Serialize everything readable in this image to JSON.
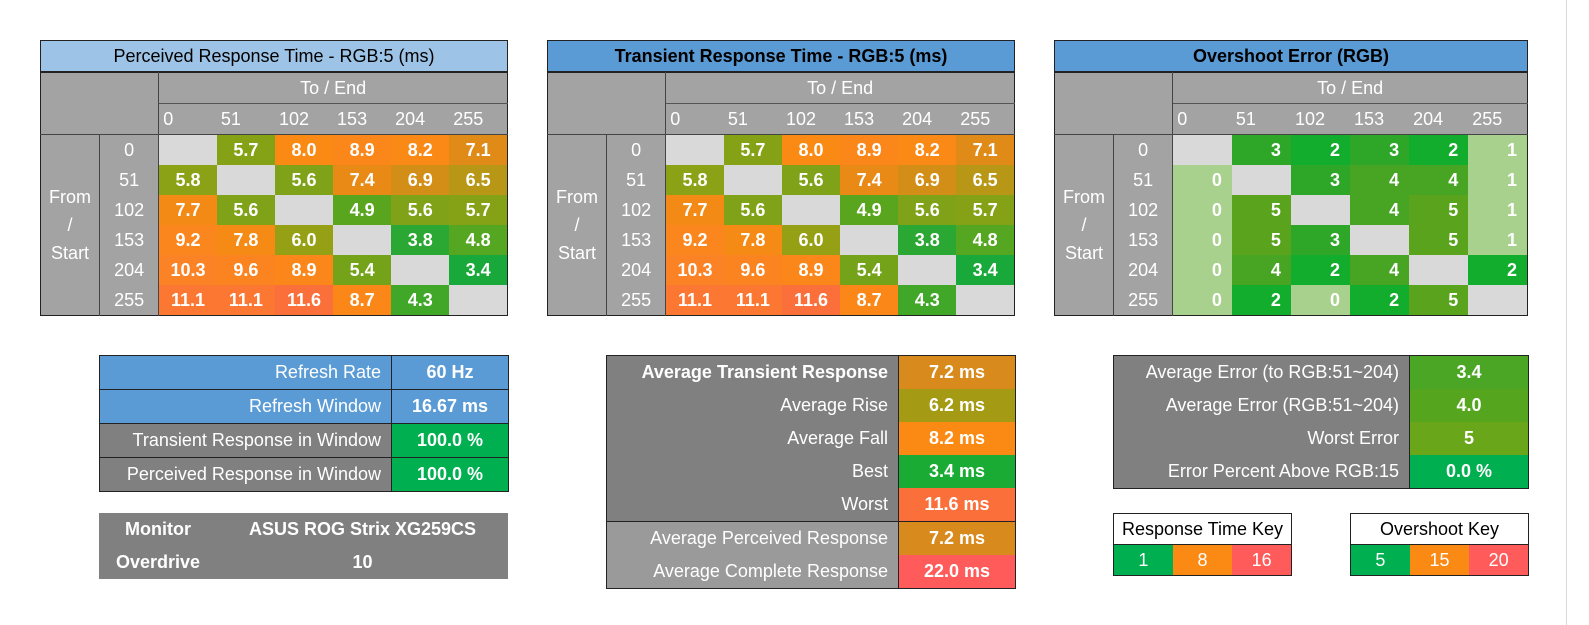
{
  "colors": {
    "blue_title_light": "#9dc3e6",
    "blue_title": "#5b9bd5",
    "header_gray": "#a3a3a3",
    "diag_gray": "#d9d9d9",
    "dark_gray": "#808080",
    "green": "#00b050",
    "red": "#ff5b5b"
  },
  "chart_data": [
    {
      "type": "heatmap",
      "title": "Perceived Response Time - RGB:5 (ms)",
      "x_label": "To / End",
      "y_label": "From / Start",
      "x_ticks": [
        "0",
        "51",
        "102",
        "153",
        "204",
        "255"
      ],
      "y_ticks": [
        "0",
        "51",
        "102",
        "153",
        "204",
        "255"
      ],
      "values": [
        [
          null,
          "5.7",
          "8.0",
          "8.9",
          "8.2",
          "7.1"
        ],
        [
          "5.8",
          null,
          "5.6",
          "7.4",
          "6.9",
          "6.5"
        ],
        [
          "7.7",
          "5.6",
          null,
          "4.9",
          "5.6",
          "5.7"
        ],
        [
          "9.2",
          "7.8",
          "6.0",
          null,
          "3.8",
          "4.8"
        ],
        [
          "10.3",
          "9.6",
          "8.9",
          "5.4",
          null,
          "3.4"
        ],
        [
          "11.1",
          "11.1",
          "11.6",
          "8.7",
          "4.3",
          null
        ]
      ]
    },
    {
      "type": "heatmap",
      "title": "Transient Response Time - RGB:5 (ms)",
      "x_label": "To / End",
      "y_label": "From / Start",
      "x_ticks": [
        "0",
        "51",
        "102",
        "153",
        "204",
        "255"
      ],
      "y_ticks": [
        "0",
        "51",
        "102",
        "153",
        "204",
        "255"
      ],
      "values": [
        [
          null,
          "5.7",
          "8.0",
          "8.9",
          "8.2",
          "7.1"
        ],
        [
          "5.8",
          null,
          "5.6",
          "7.4",
          "6.9",
          "6.5"
        ],
        [
          "7.7",
          "5.6",
          null,
          "4.9",
          "5.6",
          "5.7"
        ],
        [
          "9.2",
          "7.8",
          "6.0",
          null,
          "3.8",
          "4.8"
        ],
        [
          "10.3",
          "9.6",
          "8.9",
          "5.4",
          null,
          "3.4"
        ],
        [
          "11.1",
          "11.1",
          "11.6",
          "8.7",
          "4.3",
          null
        ]
      ]
    },
    {
      "type": "heatmap",
      "title": "Overshoot Error (RGB)",
      "x_label": "To / End",
      "y_label": "From / Start",
      "x_ticks": [
        "0",
        "51",
        "102",
        "153",
        "204",
        "255"
      ],
      "y_ticks": [
        "0",
        "51",
        "102",
        "153",
        "204",
        "255"
      ],
      "values": [
        [
          null,
          "3",
          "2",
          "3",
          "2",
          "1"
        ],
        [
          "0",
          null,
          "3",
          "4",
          "4",
          "1"
        ],
        [
          "0",
          "5",
          null,
          "4",
          "5",
          "1"
        ],
        [
          "0",
          "5",
          "3",
          null,
          "5",
          "1"
        ],
        [
          "0",
          "4",
          "2",
          "4",
          null,
          "2"
        ],
        [
          "0",
          "2",
          "0",
          "2",
          "5",
          null
        ]
      ]
    }
  ],
  "refresh_table": [
    {
      "label": "Refresh Rate",
      "value": "60 Hz"
    },
    {
      "label": "Refresh Window",
      "value": "16.67 ms"
    },
    {
      "label": "Transient Response in Window",
      "value": "100.0 %"
    },
    {
      "label": "Perceived Response in Window",
      "value": "100.0 %"
    }
  ],
  "monitor_table": [
    {
      "label": "Monitor",
      "value": "ASUS ROG Strix XG259CS"
    },
    {
      "label": "Overdrive",
      "value": "10"
    }
  ],
  "transient_summary": [
    {
      "label": "Average Transient Response",
      "value": "7.2 ms"
    },
    {
      "label": "Average Rise",
      "value": "6.2 ms"
    },
    {
      "label": "Average Fall",
      "value": "8.2 ms"
    },
    {
      "label": "Best",
      "value": "3.4 ms"
    },
    {
      "label": "Worst",
      "value": "11.6 ms"
    },
    {
      "label": "Average Perceived Response",
      "value": "7.2 ms"
    },
    {
      "label": "Average Complete Response",
      "value": "22.0 ms"
    }
  ],
  "error_summary": [
    {
      "label": "Average Error (to RGB:51~204)",
      "value": "3.4"
    },
    {
      "label": "Average Error (RGB:51~204)",
      "value": "4.0"
    },
    {
      "label": "Worst Error",
      "value": "5"
    },
    {
      "label": "Error Percent Above RGB:15",
      "value": "0.0 %"
    }
  ],
  "response_key": {
    "title": "Response Time Key",
    "values": [
      "1",
      "8",
      "16"
    ]
  },
  "overshoot_key": {
    "title": "Overshoot Key",
    "values": [
      "5",
      "15",
      "20"
    ]
  }
}
